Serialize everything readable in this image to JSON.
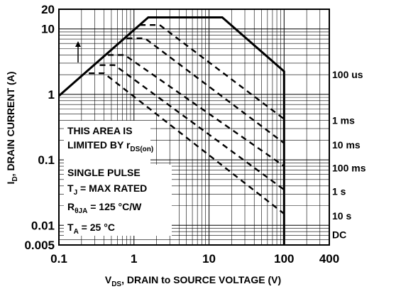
{
  "chart_data": {
    "type": "line",
    "x_scale": "log",
    "y_scale": "log",
    "xlim": [
      0.1,
      400
    ],
    "ylim": [
      0.005,
      20
    ],
    "grid": true,
    "xlabel": {
      "pre": "V",
      "sub": "DS",
      "post": ", DRAIN to SOURCE VOLTAGE (V)"
    },
    "ylabel": {
      "pre": "I",
      "sub": "D",
      "post": ", DRAIN CURRENT (A)"
    },
    "x_ticks": [
      {
        "value": 0.1,
        "label": "0.1"
      },
      {
        "value": 1,
        "label": "1"
      },
      {
        "value": 10,
        "label": "10"
      },
      {
        "value": 100,
        "label": "100"
      },
      {
        "value": 400,
        "label": "400"
      }
    ],
    "y_ticks": [
      {
        "value": 0.005,
        "label": "0.005"
      },
      {
        "value": 0.01,
        "label": "0.01"
      },
      {
        "value": 0.1,
        "label": "0.1"
      },
      {
        "value": 1,
        "label": "1"
      },
      {
        "value": 10,
        "label": "10"
      },
      {
        "value": 20,
        "label": "20"
      }
    ],
    "series": [
      {
        "name": "100 us",
        "style": "solid",
        "points": [
          [
            0.1,
            0.95
          ],
          [
            1.55,
            15
          ],
          [
            15,
            15
          ],
          [
            100,
            2.25
          ],
          [
            100,
            0.005
          ]
        ]
      },
      {
        "name": "1 ms",
        "style": "dashed",
        "points": [
          [
            1.2,
            11.5
          ],
          [
            2.2,
            11.5
          ],
          [
            100,
            0.42
          ]
        ]
      },
      {
        "name": "10 ms",
        "style": "dashed",
        "points": [
          [
            0.8,
            7.2
          ],
          [
            1.4,
            7.2
          ],
          [
            100,
            0.18
          ]
        ]
      },
      {
        "name": "100 ms",
        "style": "dashed",
        "points": [
          [
            0.45,
            4
          ],
          [
            0.75,
            4
          ],
          [
            100,
            0.08
          ]
        ]
      },
      {
        "name": "1 s",
        "style": "dashed",
        "points": [
          [
            0.35,
            2.8
          ],
          [
            0.55,
            2.8
          ],
          [
            100,
            0.035
          ]
        ]
      },
      {
        "name": "10 s",
        "style": "dashed",
        "points": [
          [
            0.25,
            2.1
          ],
          [
            0.4,
            2.1
          ],
          [
            100,
            0.015
          ]
        ]
      },
      {
        "name": "DC",
        "style": "dashed",
        "points": [
          [
            100,
            0.0072
          ]
        ]
      }
    ],
    "series_labels": [
      {
        "text": "100 us",
        "y": 2.0
      },
      {
        "text": "1 ms",
        "y": 0.4
      },
      {
        "text": "10 ms",
        "y": 0.17
      },
      {
        "text": "100 ms",
        "y": 0.075
      },
      {
        "text": "1 s",
        "y": 0.033
      },
      {
        "text": "10 s",
        "y": 0.014
      },
      {
        "text": "DC",
        "y": 0.0072
      }
    ],
    "annotations": {
      "area_line1": "THIS AREA IS",
      "area_line2_pre": "LIMITED BY r",
      "area_line2_sub": "DS(on)",
      "pulse": "SINGLE PULSE",
      "tj_pre": "T",
      "tj_sub": "J",
      "tj_post": " = MAX RATED",
      "rth_pre": "R",
      "rth_sub": "θJA",
      "rth_post": " = 125 °C/W",
      "ta_pre": "T",
      "ta_sub": "A",
      "ta_post": " = 25 °C"
    },
    "colors": {
      "line": "#000000",
      "grid": "#000000",
      "background": "#ffffff"
    }
  }
}
